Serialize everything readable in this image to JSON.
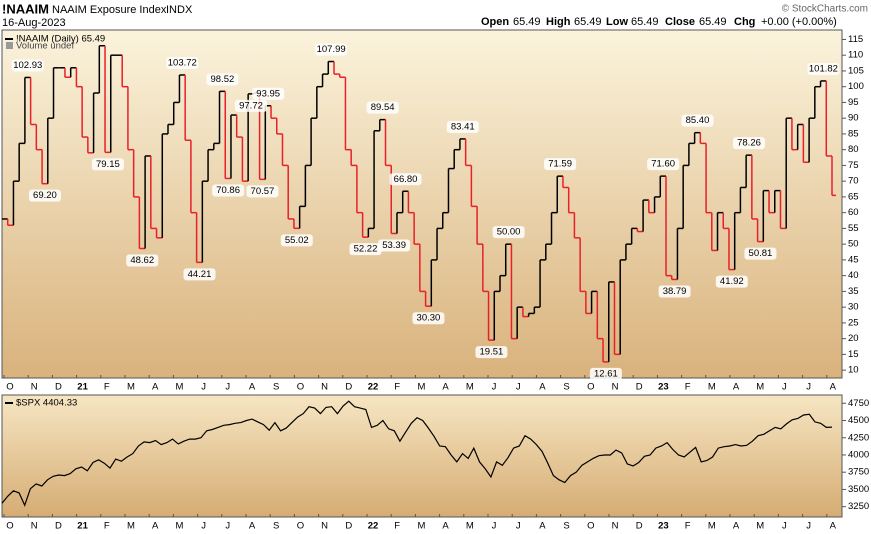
{
  "header": {
    "symbol": "!NAAIM",
    "name": "NAAIM Exposure Index",
    "exchange": "INDX",
    "date": "16-Aug-2023",
    "source": "© StockCharts.com",
    "open_label": "Open",
    "open": "65.49",
    "high_label": "High",
    "high": "65.49",
    "low_label": "Low",
    "low": "65.49",
    "close_label": "Close",
    "close": "65.49",
    "chg_label": "Chg",
    "chg": "+0.00 (+0.00%)"
  },
  "chart_data": [
    {
      "type": "step",
      "legend": "!NAAIM (Daily) 65.49",
      "legend2": "Volume undef",
      "up_color": "#000000",
      "down_color": "#e8202a",
      "months": [
        "O",
        "N",
        "D",
        "21",
        "F",
        "M",
        "A",
        "M",
        "J",
        "J",
        "A",
        "S",
        "O",
        "N",
        "D",
        "22",
        "F",
        "M",
        "A",
        "M",
        "J",
        "J",
        "A",
        "S",
        "O",
        "N",
        "D",
        "23",
        "F",
        "M",
        "A",
        "M",
        "J",
        "J",
        "A"
      ],
      "values": [
        58,
        56,
        70,
        82,
        102.93,
        88,
        80,
        69.2,
        90,
        106,
        106,
        103,
        106,
        100,
        84,
        79,
        98,
        113,
        79.15,
        110,
        110,
        100,
        80,
        65,
        48.62,
        78,
        55,
        52,
        85,
        88,
        95,
        103.72,
        83,
        60,
        44.21,
        70,
        80,
        82,
        98.52,
        70.86,
        91,
        84,
        70,
        97.72,
        98,
        70.57,
        93.95,
        90,
        85,
        75,
        58,
        55.02,
        62,
        75,
        90,
        100,
        104,
        107.99,
        104,
        103,
        80,
        75,
        60,
        52.22,
        55,
        86,
        89.54,
        75,
        53.39,
        60,
        66.8,
        60,
        50,
        35,
        30.3,
        45,
        55,
        60,
        74,
        80,
        83.41,
        75,
        62,
        50,
        35,
        19.51,
        35,
        40,
        50,
        20,
        30,
        27,
        28,
        30,
        45,
        50,
        60,
        71.59,
        68,
        60,
        52,
        35,
        28,
        35,
        20,
        12.61,
        38,
        15,
        45,
        50,
        55,
        54,
        64,
        60,
        65,
        71.6,
        40,
        38.79,
        55,
        75,
        82,
        85.4,
        82,
        60,
        48,
        60,
        55,
        41.92,
        60,
        68,
        78.26,
        58,
        50.81,
        67,
        60,
        67,
        55,
        90,
        80,
        88,
        76,
        90,
        100,
        101.82,
        78,
        65.49
      ],
      "value_labels": [
        null,
        null,
        null,
        null,
        "102.93",
        null,
        null,
        "69.20",
        null,
        null,
        null,
        null,
        null,
        null,
        null,
        null,
        null,
        null,
        "79.15",
        null,
        null,
        null,
        null,
        null,
        "48.62",
        null,
        null,
        null,
        null,
        null,
        null,
        "103.72",
        null,
        null,
        "44.21",
        null,
        null,
        null,
        "98.52",
        "70.86",
        null,
        null,
        null,
        "97.72",
        null,
        "70.57",
        "93.95",
        null,
        null,
        null,
        null,
        "55.02",
        null,
        null,
        null,
        null,
        null,
        "107.99",
        null,
        null,
        null,
        null,
        null,
        "52.22",
        null,
        null,
        "89.54",
        null,
        "53.39",
        null,
        "66.80",
        null,
        null,
        null,
        "30.30",
        null,
        null,
        null,
        null,
        null,
        "83.41",
        null,
        null,
        null,
        null,
        "19.51",
        null,
        null,
        "50.00",
        null,
        null,
        null,
        null,
        null,
        null,
        null,
        null,
        "71.59",
        null,
        null,
        null,
        null,
        null,
        null,
        null,
        "12.61",
        null,
        null,
        null,
        null,
        null,
        null,
        null,
        null,
        null,
        "71.60",
        null,
        "38.79",
        null,
        null,
        null,
        "85.40",
        null,
        null,
        null,
        null,
        null,
        "41.92",
        null,
        null,
        "78.26",
        null,
        "50.81",
        null,
        null,
        null,
        null,
        null,
        null,
        null,
        null,
        null,
        null,
        "101.82",
        null,
        null
      ],
      "ylim": [
        7.5,
        118
      ],
      "yticks": [
        10,
        15,
        20,
        25,
        30,
        35,
        40,
        45,
        50,
        55,
        60,
        65,
        70,
        75,
        80,
        85,
        90,
        95,
        100,
        105,
        110,
        115
      ]
    },
    {
      "type": "line",
      "legend": "$SPX 4404.33",
      "color": "#000000",
      "values": [
        3300,
        3400,
        3480,
        3450,
        3270,
        3510,
        3580,
        3550,
        3640,
        3690,
        3710,
        3700,
        3730,
        3800,
        3825,
        3770,
        3890,
        3930,
        3880,
        3810,
        3940,
        3910,
        3970,
        4020,
        4130,
        4190,
        4180,
        4210,
        4150,
        4180,
        4230,
        4160,
        4200,
        4230,
        4230,
        4250,
        4350,
        4370,
        4400,
        4430,
        4440,
        4460,
        4470,
        4500,
        4520,
        4480,
        4440,
        4360,
        4470,
        4350,
        4390,
        4470,
        4550,
        4600,
        4700,
        4680,
        4600,
        4690,
        4700,
        4600,
        4710,
        4780,
        4700,
        4680,
        4660,
        4400,
        4430,
        4500,
        4380,
        4350,
        4200,
        4330,
        4460,
        4540,
        4500,
        4390,
        4270,
        4130,
        4120,
        4000,
        3900,
        4020,
        3950,
        4100,
        3900,
        3800,
        3680,
        3900,
        3850,
        3960,
        4100,
        4130,
        4280,
        4230,
        4150,
        4050,
        3880,
        3700,
        3640,
        3600,
        3700,
        3750,
        3850,
        3900,
        3950,
        3990,
        4000,
        4000,
        4070,
        4030,
        3870,
        3840,
        3890,
        3980,
        4000,
        4100,
        4130,
        4180,
        4080,
        4000,
        3970,
        4040,
        4110,
        3900,
        3920,
        3970,
        4100,
        4120,
        4130,
        4150,
        4130,
        4140,
        4200,
        4280,
        4300,
        4350,
        4400,
        4380,
        4450,
        4510,
        4530,
        4580,
        4590,
        4480,
        4460,
        4400,
        4404.33
      ],
      "ylim": [
        3100,
        4870
      ],
      "yticks": [
        3250,
        3500,
        3750,
        4000,
        4250,
        4500,
        4750
      ]
    }
  ]
}
